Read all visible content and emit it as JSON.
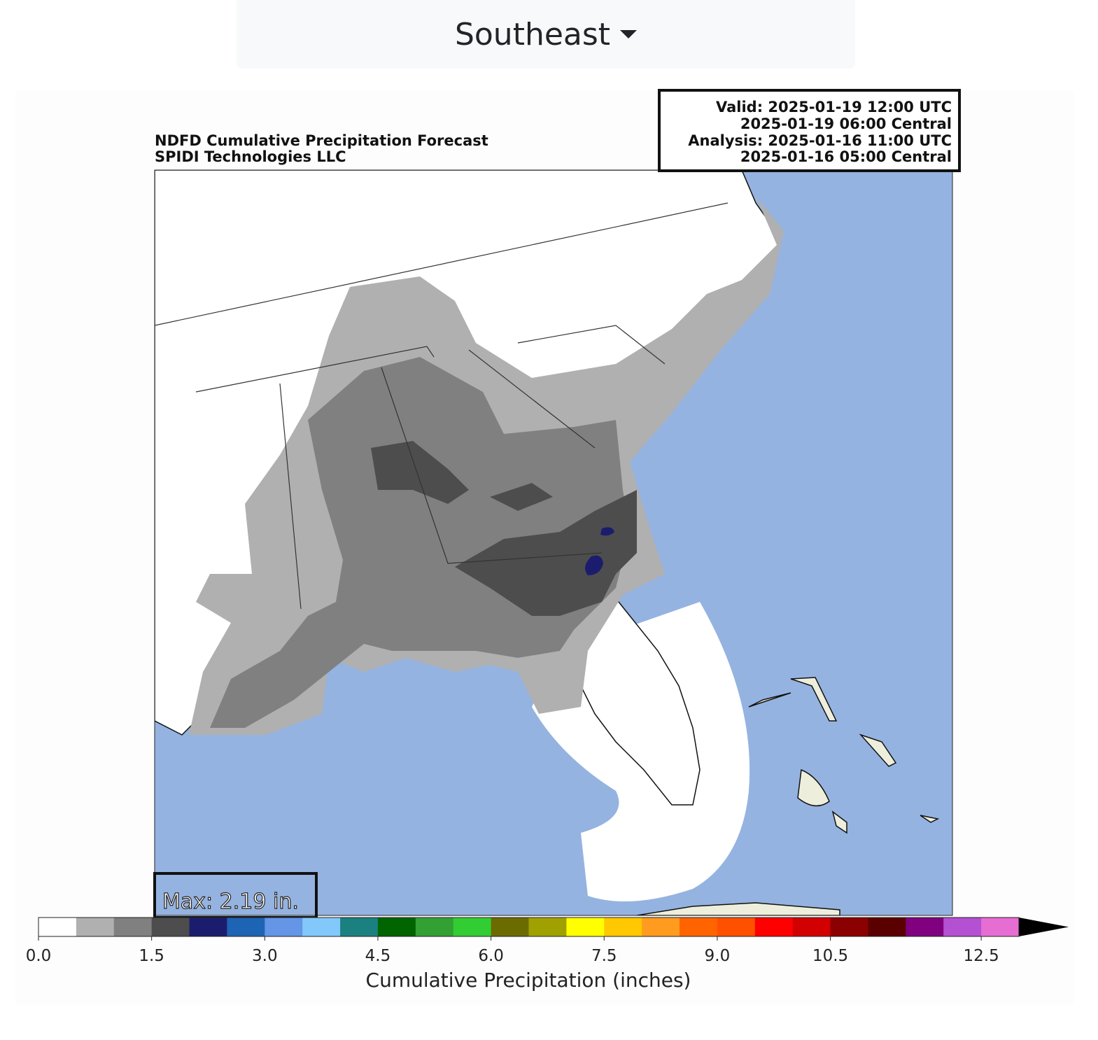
{
  "header": {
    "region": "Southeast"
  },
  "map": {
    "title": [
      "NDFD Cumulative Precipitation Forecast",
      "SPIDI Technologies LLC"
    ],
    "info": [
      "Valid: 2025-01-19 12:00 UTC",
      "2025-01-19 06:00 Central",
      "Analysis: 2025-01-16 11:00 UTC",
      "2025-01-16 05:00 Central"
    ],
    "max_label": "Max: 2.19 in."
  },
  "colorbar": {
    "colors": [
      "#ffffff",
      "#b0b0b0",
      "#808080",
      "#4d4d4d",
      "#1c1c6e",
      "#1e64b4",
      "#6495e6",
      "#82c8fa",
      "#1a8080",
      "#006400",
      "#32a032",
      "#32cd32",
      "#6b6b00",
      "#a0a000",
      "#ffff00",
      "#ffc800",
      "#ff9b1e",
      "#ff6400",
      "#ff5000",
      "#ff0000",
      "#d20000",
      "#8b0000",
      "#5a0000",
      "#800080",
      "#b450d2",
      "#e66ed2"
    ],
    "extend_color": "#000000",
    "xlim": [
      0,
      13
    ],
    "ticks": [
      {
        "value": 0,
        "label": "0.0"
      },
      1.5,
      {
        "value": 3,
        "label": "3.0"
      },
      4.5,
      {
        "value": 6,
        "label": "6.0"
      },
      7.5,
      {
        "value": 9,
        "label": "9.0"
      },
      10.5,
      12.5
    ],
    "label": "Cumulative Precipitation (inches)"
  }
}
